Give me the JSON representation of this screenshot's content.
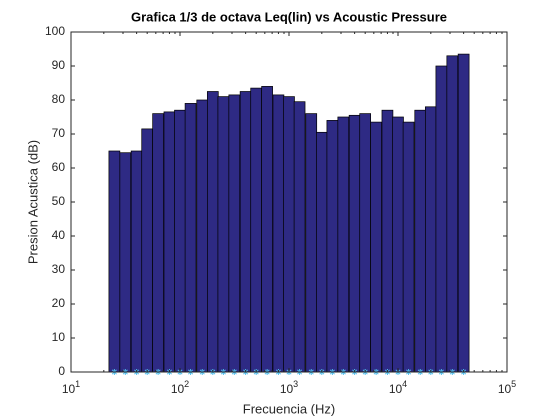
{
  "chart_data": {
    "type": "bar",
    "title": "Grafica 1/3 de octava Leq(lin) vs Acoustic Pressure",
    "x_label": "Frecuencia (Hz)",
    "y_label": "Presion Acustica (dB)",
    "x": [
      25,
      31.5,
      40,
      50,
      63,
      80,
      100,
      125,
      160,
      200,
      250,
      315,
      400,
      500,
      630,
      800,
      1000,
      1250,
      1600,
      2000,
      2500,
      3150,
      4000,
      5000,
      6300,
      8000,
      10000,
      12500,
      16000,
      20000,
      25000,
      31500,
      40000
    ],
    "values": [
      65,
      64.5,
      65,
      71.5,
      76,
      76.5,
      77,
      79,
      80,
      82.5,
      81,
      81.5,
      82.5,
      83.5,
      84,
      81.5,
      81,
      79.5,
      76,
      70.5,
      74,
      75,
      75.5,
      76,
      73.5,
      77,
      75,
      73.5,
      77,
      78,
      90,
      93,
      93.5
    ],
    "color": "#2e2a84",
    "edge_color": "#000000",
    "marker_color": "#4dbeee",
    "xscale": "log",
    "xlim": [
      10,
      100000
    ],
    "xticks": [
      {
        "value": 10,
        "label": "10^1"
      },
      {
        "value": 100,
        "label": "10^2"
      },
      {
        "value": 1000,
        "label": "10^3"
      },
      {
        "value": 10000,
        "label": "10^4"
      },
      {
        "value": 100000,
        "label": "10^5"
      }
    ],
    "ylim": [
      0,
      100
    ],
    "yticks": [
      0,
      10,
      20,
      30,
      40,
      50,
      60,
      70,
      80,
      90,
      100
    ]
  }
}
